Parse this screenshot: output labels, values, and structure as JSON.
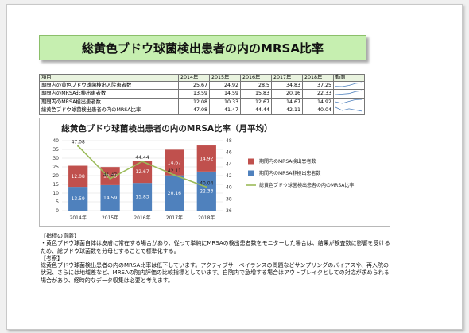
{
  "title": "総黄色ブドウ球菌検出患者の内のMRSA比率",
  "table": {
    "header": [
      "項目",
      "2014年",
      "2015年",
      "2016年",
      "2017年",
      "2018年",
      "動向"
    ],
    "rows": [
      {
        "label": "期間内の黄色ブドウ球菌検出入院患者数",
        "values": [
          "25.67",
          "24.92",
          "28.5",
          "34.83",
          "37.25"
        ],
        "trend": [
          25.67,
          24.92,
          28.5,
          34.83,
          37.25
        ]
      },
      {
        "label": "期間内のMRSA非検出患者数",
        "values": [
          "13.59",
          "14.59",
          "15.83",
          "20.16",
          "22.33"
        ],
        "trend": [
          13.59,
          14.59,
          15.83,
          20.16,
          22.33
        ]
      },
      {
        "label": "期間内のMRSA検出患者数",
        "values": [
          "12.08",
          "10.33",
          "12.67",
          "14.67",
          "14.92"
        ],
        "trend": [
          12.08,
          10.33,
          12.67,
          14.67,
          14.92
        ]
      },
      {
        "label": "総黄色ブドウ球菌検出患者の内のMRSA比率",
        "values": [
          "47.08",
          "41.47",
          "44.44",
          "42.11",
          "40.04"
        ],
        "trend": [
          47.08,
          41.47,
          44.44,
          42.11,
          40.04
        ]
      }
    ]
  },
  "chart_data": {
    "type": "bar",
    "title": "総黄色ブドウ球菌検出患者の内のMRSA比率（月平均）",
    "categories": [
      "2014年",
      "2015年",
      "2016年",
      "2017年",
      "2018年"
    ],
    "series": [
      {
        "name": "期間内のMRSA非検出患者数",
        "kind": "stacked-bar",
        "axis": "left",
        "color": "#4f81bd",
        "values": [
          13.59,
          14.59,
          15.83,
          20.16,
          22.33
        ],
        "labels": [
          "13.59",
          "14.59",
          "15.83",
          "20.16",
          "22.33"
        ]
      },
      {
        "name": "期間内のMRSA検出患者数",
        "kind": "stacked-bar",
        "axis": "left",
        "color": "#c0504d",
        "values": [
          12.08,
          10.33,
          12.67,
          14.67,
          14.92
        ],
        "labels": [
          "12.08",
          "10.33",
          "12.67",
          "14.67",
          "14.92"
        ]
      },
      {
        "name": "総黄色ブドウ球菌検出患者の内のMRSA比率",
        "kind": "line",
        "axis": "right",
        "color": "#9bbb59",
        "values": [
          47.08,
          41.47,
          44.44,
          42.11,
          40.04
        ],
        "labels": [
          "47.08",
          "41.47",
          "44.44",
          "42.11",
          "40.04"
        ]
      }
    ],
    "legend_order": [
      1,
      0,
      2
    ],
    "y_left": {
      "min": 0,
      "max": 40,
      "ticks": [
        "0",
        "5",
        "10",
        "15",
        "20",
        "25",
        "30",
        "35",
        "40"
      ]
    },
    "y_right": {
      "min": 36,
      "max": 48,
      "ticks": [
        "36",
        "38",
        "40",
        "42",
        "44",
        "46",
        "48"
      ]
    },
    "grid": true,
    "legend": "right"
  },
  "notes": {
    "heading1": "【指標の意義】",
    "text1": "・黄色ブドウ球菌自体は皮膚に常在する場合があり、従って単純にMRSAの検出患者数をモニターした場合は、結果が検査数に影響を受けるため、総ブドウ球菌数を分母とすることで標準化する。",
    "heading2": "【考察】",
    "text2": "総黄色ブドウ球菌検出患者の内のMRSA比率は低下しています。アクティブサーベイランスの問題などサンプリングのバイアスや、再入院の状況、さらには地域差など、MRSAの院内評価の比較指標としています。自院内で急増する場合はアウトブレイクとしての対応が求められる場合があり、経時的なデータ収集は必要と考えます。"
  }
}
